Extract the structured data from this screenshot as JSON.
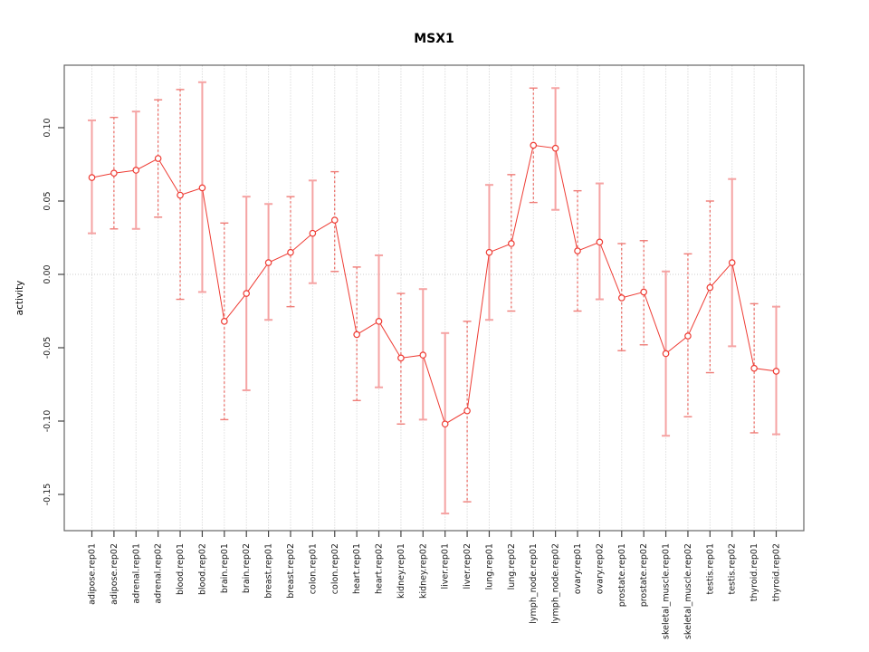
{
  "figure": {
    "background": "#ffffff"
  },
  "chart_data": {
    "type": "line",
    "subtype": "points-with-error-bars",
    "title": "MSX1",
    "ylabel": "activity",
    "xlabel": "",
    "legend": "none",
    "grid": {
      "vertical_dotted_per_category": true,
      "zero_line_dotted": true
    },
    "ylim": [
      -0.175,
      0.143
    ],
    "yticks": [
      0.1,
      0.05,
      0.0,
      -0.05,
      -0.1,
      -0.15
    ],
    "ytick_labels": [
      "0.10",
      "0.05",
      "0.00",
      "-0.05",
      "-0.10",
      "-0.15"
    ],
    "categories": [
      "adipose.rep01",
      "adipose.rep02",
      "adrenal.rep01",
      "adrenal.rep02",
      "blood.rep01",
      "blood.rep02",
      "brain.rep01",
      "brain.rep02",
      "breast.rep01",
      "breast.rep02",
      "colon.rep01",
      "colon.rep02",
      "heart.rep01",
      "heart.rep02",
      "kidney.rep01",
      "kidney.rep02",
      "liver.rep01",
      "liver.rep02",
      "lung.rep01",
      "lung.rep02",
      "lymph_node.rep01",
      "lymph_node.rep02",
      "ovary.rep01",
      "ovary.rep02",
      "prostate.rep01",
      "prostate.rep02",
      "skeletal_muscle.rep01",
      "skeletal_muscle.rep02",
      "testis.rep01",
      "testis.rep02",
      "thyroid.rep01",
      "thyroid.rep02"
    ],
    "series": [
      {
        "name": "MSX1",
        "values": [
          0.066,
          0.069,
          0.071,
          0.079,
          0.054,
          0.059,
          -0.032,
          -0.013,
          0.008,
          0.015,
          0.028,
          0.037,
          -0.041,
          -0.032,
          -0.057,
          -0.055,
          -0.102,
          -0.093,
          0.015,
          0.021,
          0.088,
          0.086,
          0.016,
          0.022,
          -0.016,
          -0.012,
          -0.054,
          -0.042,
          -0.009,
          0.008,
          -0.064,
          -0.066
        ],
        "ci_low": [
          0.028,
          0.031,
          0.031,
          0.039,
          -0.017,
          -0.012,
          -0.099,
          -0.079,
          -0.031,
          -0.022,
          -0.006,
          0.002,
          -0.086,
          -0.077,
          -0.102,
          -0.099,
          -0.163,
          -0.155,
          -0.031,
          -0.025,
          0.049,
          0.044,
          -0.025,
          -0.017,
          -0.052,
          -0.048,
          -0.11,
          -0.097,
          -0.067,
          -0.049,
          -0.108,
          -0.109
        ],
        "ci_high": [
          0.105,
          0.107,
          0.111,
          0.119,
          0.126,
          0.131,
          0.035,
          0.053,
          0.048,
          0.053,
          0.064,
          0.07,
          0.005,
          0.013,
          -0.013,
          -0.01,
          -0.04,
          -0.032,
          0.061,
          0.068,
          0.127,
          0.127,
          0.057,
          0.062,
          0.021,
          0.023,
          0.002,
          0.014,
          0.05,
          0.065,
          -0.02,
          -0.022
        ]
      }
    ],
    "whisker_styles": [
      "solid",
      "dashed",
      "solid",
      "dashed",
      "dashed",
      "solid",
      "dashed",
      "solid",
      "solid",
      "dashed",
      "solid",
      "dashed",
      "dashed",
      "solid",
      "dashed",
      "solid",
      "solid",
      "dashed",
      "solid",
      "dashed",
      "dashed",
      "solid",
      "dashed",
      "solid",
      "dashed",
      "dashed",
      "solid",
      "dashed",
      "dashed",
      "solid",
      "dashed",
      "solid"
    ],
    "colors": {
      "point": "#ee3b33",
      "series_line": "#ee3b33",
      "whisker_dashed": "#e84c44",
      "whisker_dashed_cap": "#ef7d78",
      "whisker_solid": "#f5a3a3",
      "frame": "#666666",
      "tick": "#444444",
      "tick_label": "#1a1a1a",
      "grid": "#cccccc"
    }
  }
}
